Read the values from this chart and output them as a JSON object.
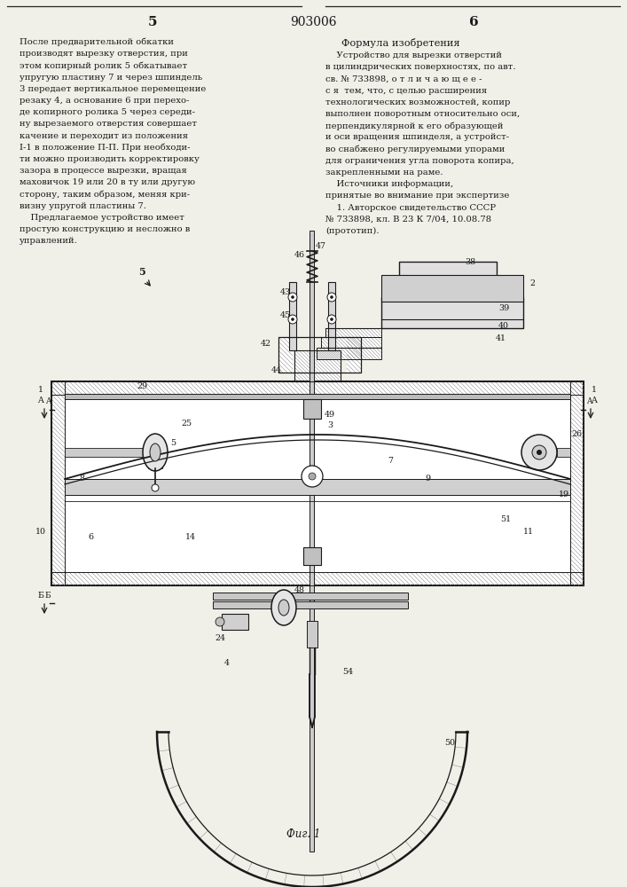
{
  "patent_number": "903006",
  "page_left": "5",
  "page_right": "6",
  "bg_color": "#f0efe8",
  "text_color": "#1a1a1a",
  "left_column_text": [
    "После предварительной обкатки",
    "производят вырезку отверстия, при",
    "этом копирный ролик 5 обкатывает",
    "упругую пластину 7 и через шпиндель",
    "3 передает вертикальное перемещение",
    "резаку 4, а основание 6 при перехо-",
    "де копирного ролика 5 через середи-",
    "ну вырезаемого отверстия совершает",
    "качение и переходит из положения",
    "I-1 в положение П-П. При необходи-",
    "ти можно производить корректировку",
    "зазора в процессе вырезки, вращая",
    "маховичок 19 или 20 в ту или другую",
    "сторону, таким образом, меняя кри-",
    "визну упругой пластины 7.",
    "    Предлагаемое устройство имеет",
    "простую конструкцию и несложно в",
    "управлений."
  ],
  "right_column_title": "Формула изобретения",
  "right_column_text": [
    "    Устройство для вырезки отверстий",
    "в цилиндрических поверхностях, по авт.",
    "св. № 733898, о т л и ч а ю щ е е -",
    "с я  тем, что, с целью расширения",
    "технологических возможностей, копир",
    "выполнен поворотным относительно оси,",
    "перпендикулярной к его образующей",
    "и оси вращения шпинделя, а устройст-",
    "во снабжено регулируемыми упорами",
    "для ограничения угла поворота копира,",
    "закрепленными на раме.",
    "    Источники информации,",
    "принятые во внимание при экспертизе",
    "    1. Авторское свидетельство СССР",
    "№ 733898, кл. В 23 К 7/04, 10.08.78",
    "(прототип)."
  ],
  "fig_caption": "Фиг. 1"
}
